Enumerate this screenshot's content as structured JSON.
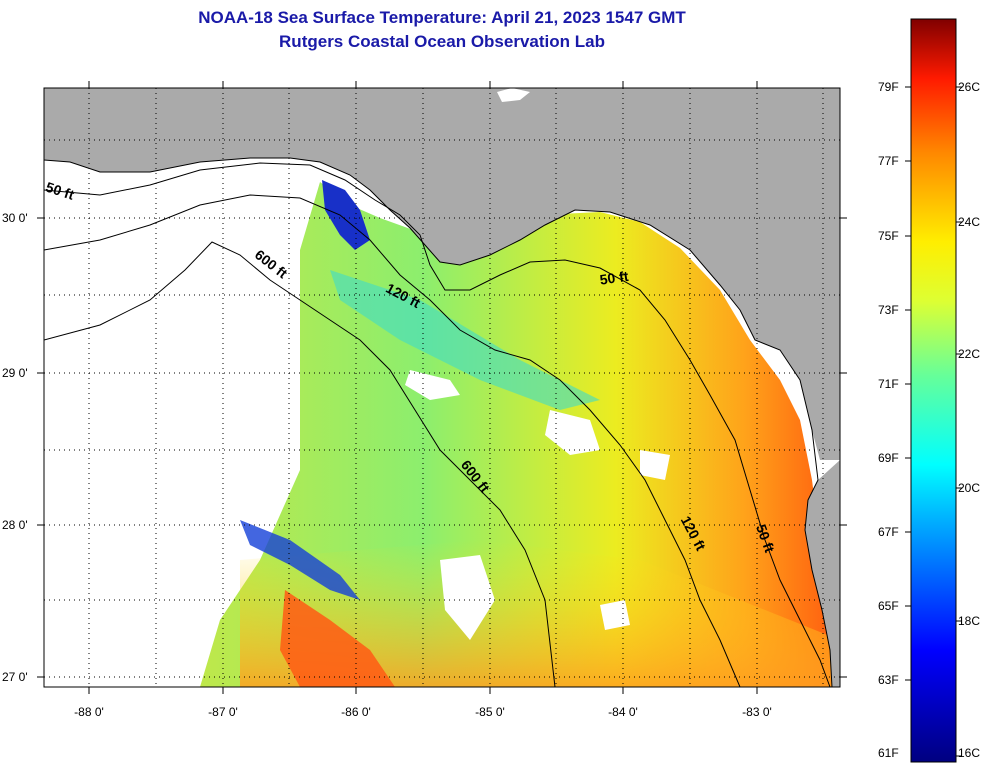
{
  "header": {
    "title": "NOAA-18 Sea Surface Temperature:  April 21, 2023 1547 GMT",
    "subtitle": "Rutgers Coastal Ocean Observation Lab"
  },
  "axes": {
    "x_ticks": [
      "-88 0'",
      "-87 0'",
      "-86 0'",
      "-85 0'",
      "-84 0'",
      "-83 0'"
    ],
    "y_ticks": [
      "30 0'",
      "29 0'",
      "28 0'",
      "27 0'"
    ]
  },
  "contours": {
    "c50_west": "50 ft",
    "c600_north": "600 ft",
    "c120_north": "120 ft",
    "c50_east": "50 ft",
    "c600_south": "600 ft",
    "c120_south": "120 ft",
    "c50_south": "50 ft"
  },
  "colorbar": {
    "fahrenheit": [
      "79F",
      "77F",
      "75F",
      "73F",
      "71F",
      "69F",
      "67F",
      "65F",
      "63F",
      "61F"
    ],
    "celsius": [
      "26C",
      "24C",
      "22C",
      "20C",
      "18C",
      "16C"
    ]
  },
  "colors": {
    "land": "#aaaaaa",
    "cloud": "#ffffff",
    "title": "#1a1aa8"
  }
}
